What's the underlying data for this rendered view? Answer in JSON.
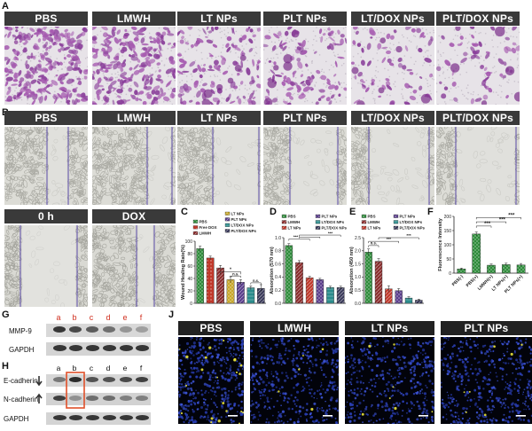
{
  "panels": {
    "A": "A",
    "B": "B",
    "C": "C",
    "D": "D",
    "E": "E",
    "F": "F",
    "G": "G",
    "H": "H",
    "J": "J"
  },
  "rowA": [
    "PBS",
    "LMWH",
    "LT NPs",
    "PLT NPs",
    "LT/DOX NPs",
    "PLT/DOX NPs"
  ],
  "rowB": [
    "PBS",
    "LMWH",
    "LT NPs",
    "PLT NPs",
    "LT/DOX NPs",
    "PLT/DOX NPs"
  ],
  "rowB2": [
    "0 h",
    "DOX"
  ],
  "rowJ": [
    "PBS",
    "LMWH",
    "LT NPs",
    "PLT NPs"
  ],
  "colors": {
    "pbs": "#2e8b3a",
    "freedox": "#c0392b",
    "lmwh": "#8b2e2e",
    "ltnps": "#c8a82a",
    "pltnps": "#5a3e8c",
    "ltdox": "#2a8c8c",
    "pltdox": "#3a3a5a",
    "red_letter": "#d03020",
    "box": "#e0502a"
  },
  "chart_data": [
    {
      "panel": "C",
      "type": "bar",
      "ylabel": "Wound Healing Rate(%)",
      "ylim": [
        0,
        100
      ],
      "yticks": [
        0,
        20,
        40,
        60,
        80,
        100
      ],
      "legend": [
        "PBS",
        "Free DOX",
        "LMWH",
        "LT NPs",
        "PLT NPs",
        "LT/DOX NPs",
        "PLT/DOX NPs"
      ],
      "values": [
        88,
        73,
        57,
        38,
        34,
        25,
        24
      ],
      "errors": [
        4,
        3,
        4,
        5,
        4,
        3,
        6
      ],
      "annotations": [
        "*",
        "n.s.",
        "n.s."
      ]
    },
    {
      "panel": "D",
      "type": "bar",
      "ylabel": "Absorption (570 nm)",
      "ylim": [
        0,
        1.0
      ],
      "yticks": [
        0.0,
        0.2,
        0.4,
        0.6,
        0.8,
        1.0
      ],
      "legend": [
        "PBS",
        "LMWH",
        "LT NPs",
        "PLT NPs",
        "LT/DOX NPs",
        "PLT/DOX NPs"
      ],
      "values": [
        0.88,
        0.62,
        0.39,
        0.36,
        0.24,
        0.24
      ],
      "errors": [
        0.03,
        0.03,
        0.02,
        0.02,
        0.02,
        0.02
      ],
      "annotations": [
        "***",
        "***"
      ]
    },
    {
      "panel": "E",
      "type": "bar",
      "ylabel": "Absorption (450 nm)",
      "ylim": [
        0,
        2.5
      ],
      "yticks": [
        0.0,
        0.5,
        1.0,
        1.5,
        2.0,
        2.5
      ],
      "legend": [
        "PBS",
        "LMWH",
        "LT NPs",
        "PLT NPs",
        "LT/DOX NPs",
        "PLT/DOX NPs"
      ],
      "values": [
        1.95,
        1.6,
        0.55,
        0.48,
        0.2,
        0.12
      ],
      "errors": [
        0.12,
        0.1,
        0.12,
        0.08,
        0.05,
        0.04
      ],
      "annotations": [
        "n.s.",
        "***",
        "***"
      ]
    },
    {
      "panel": "F",
      "type": "bar",
      "ylabel": "Fluorescence Intensity",
      "ylim": [
        0,
        200
      ],
      "yticks": [
        0,
        50,
        100,
        150,
        200
      ],
      "categories": [
        "PBS(-)",
        "PBS(+)",
        "LMWH(+)",
        "LT NPs(+)",
        "PLT NPs(+)"
      ],
      "values": [
        15,
        138,
        28,
        30,
        29
      ],
      "errors": [
        3,
        7,
        4,
        5,
        5
      ],
      "annotations": [
        "***",
        "***",
        "***"
      ]
    }
  ],
  "blotG": {
    "lanes": [
      "a",
      "b",
      "c",
      "d",
      "e",
      "f"
    ],
    "rows": [
      "MMP-9",
      "GAPDH"
    ]
  },
  "blotH": {
    "lanes": [
      "a",
      "b",
      "c",
      "d",
      "e",
      "f"
    ],
    "rows": [
      "E-cadherin",
      "N-cadherin",
      "GAPDH"
    ]
  }
}
